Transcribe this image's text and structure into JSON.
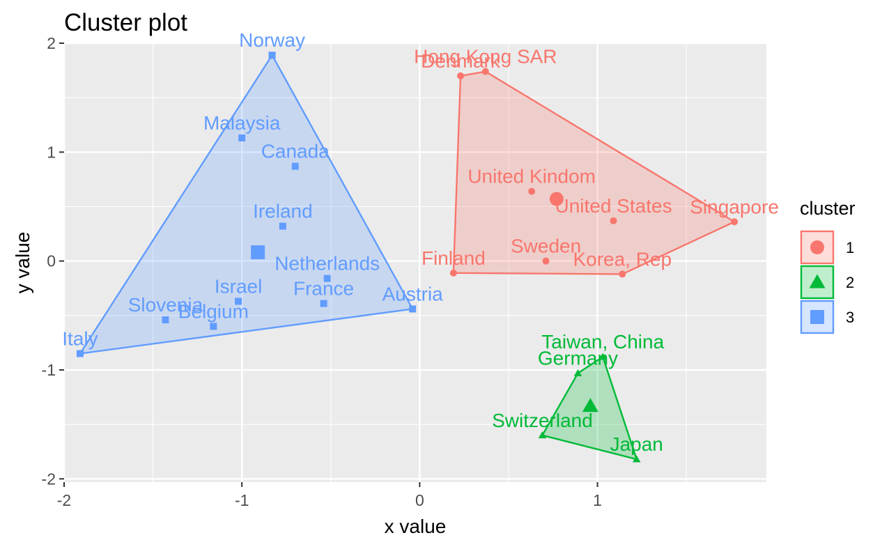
{
  "chart_data": {
    "type": "scatter",
    "title": "Cluster plot",
    "xlabel": "x value",
    "ylabel": "y value",
    "xlim": [
      -2.0,
      1.95
    ],
    "ylim": [
      -2.03,
      2.0
    ],
    "x_ticks": [
      -2,
      -1,
      0,
      1
    ],
    "y_ticks": [
      -2,
      -1,
      0,
      1,
      2
    ],
    "grid": true,
    "legend": {
      "title": "cluster",
      "position": "right",
      "entries": [
        {
          "label": "1",
          "color": "#F8766D",
          "shape": "circle"
        },
        {
          "label": "2",
          "color": "#00BA38",
          "shape": "triangle"
        },
        {
          "label": "3",
          "color": "#619CFF",
          "shape": "square"
        }
      ]
    },
    "clusters": [
      {
        "id": "1",
        "color": "#F8766D",
        "shape": "circle",
        "center": [
          0.77,
          0.57
        ],
        "hull": [
          "Denmark",
          "Hong Kong SAR",
          "Singapore",
          "Korea, Rep",
          "Finland"
        ],
        "points": [
          {
            "label": "Hong Kong SAR",
            "x": 0.37,
            "y": 1.74
          },
          {
            "label": "Denmark",
            "x": 0.23,
            "y": 1.7
          },
          {
            "label": "United Kindom",
            "x": 0.63,
            "y": 0.64
          },
          {
            "label": "United States",
            "x": 1.09,
            "y": 0.37
          },
          {
            "label": "Singapore",
            "x": 1.77,
            "y": 0.36
          },
          {
            "label": "Sweden",
            "x": 0.71,
            "y": 0.0
          },
          {
            "label": "Finland",
            "x": 0.19,
            "y": -0.11
          },
          {
            "label": "Korea, Rep",
            "x": 1.14,
            "y": -0.12
          }
        ]
      },
      {
        "id": "2",
        "color": "#00BA38",
        "shape": "triangle",
        "center": [
          0.96,
          -1.33
        ],
        "hull": [
          "Taiwan, China",
          "Japan",
          "Switzerland",
          "Germany"
        ],
        "points": [
          {
            "label": "Taiwan, China",
            "x": 1.03,
            "y": -0.88
          },
          {
            "label": "Germany",
            "x": 0.89,
            "y": -1.03
          },
          {
            "label": "Switzerland",
            "x": 0.69,
            "y": -1.6
          },
          {
            "label": "Japan",
            "x": 1.22,
            "y": -1.82
          }
        ]
      },
      {
        "id": "3",
        "color": "#619CFF",
        "shape": "square",
        "center": [
          -0.91,
          0.08
        ],
        "hull": [
          "Norway",
          "Austria",
          "Italy"
        ],
        "points": [
          {
            "label": "Norway",
            "x": -0.83,
            "y": 1.89
          },
          {
            "label": "Malaysia",
            "x": -1.0,
            "y": 1.13
          },
          {
            "label": "Canada",
            "x": -0.7,
            "y": 0.87
          },
          {
            "label": "Ireland",
            "x": -0.77,
            "y": 0.32
          },
          {
            "label": "Netherlands",
            "x": -0.52,
            "y": -0.16
          },
          {
            "label": "Israel",
            "x": -1.02,
            "y": -0.37
          },
          {
            "label": "France",
            "x": -0.54,
            "y": -0.39
          },
          {
            "label": "Austria",
            "x": -0.04,
            "y": -0.44
          },
          {
            "label": "Slovenia",
            "x": -1.43,
            "y": -0.54
          },
          {
            "label": "Belgium",
            "x": -1.16,
            "y": -0.6
          },
          {
            "label": "Italy",
            "x": -1.91,
            "y": -0.85
          }
        ]
      }
    ]
  }
}
